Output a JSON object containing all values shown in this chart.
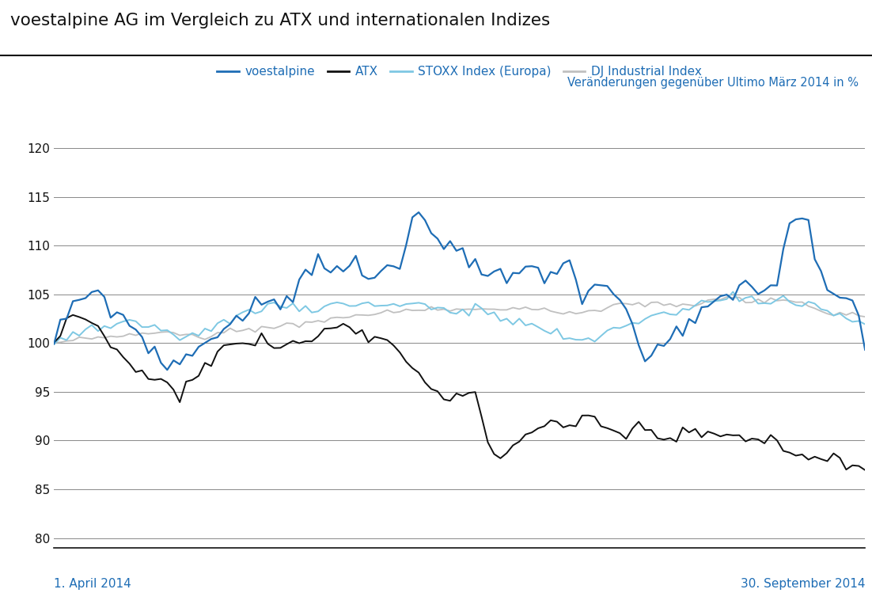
{
  "title": "voestalpine AG im Vergleich zu ATX und internationalen Indizes",
  "subtitle": "Veränderungen gegenüber Ultimo März 2014 in %",
  "xlabel_left": "1. April 2014",
  "xlabel_right": "30. September 2014",
  "ylim": [
    79,
    122
  ],
  "yticks": [
    80,
    85,
    90,
    95,
    100,
    105,
    110,
    115,
    120
  ],
  "legend_labels": [
    "voestalpine",
    "ATX",
    "STOXX Index (Europa)",
    "DJ Industrial Index"
  ],
  "colors": {
    "voestalpine": "#1e6db5",
    "atx": "#111111",
    "stoxx": "#7ec8e3",
    "dj": "#c0c0c0"
  },
  "background": "#ffffff",
  "title_color": "#111111",
  "label_color": "#1e6db5",
  "grid_color": "#888888",
  "n_points": 130
}
